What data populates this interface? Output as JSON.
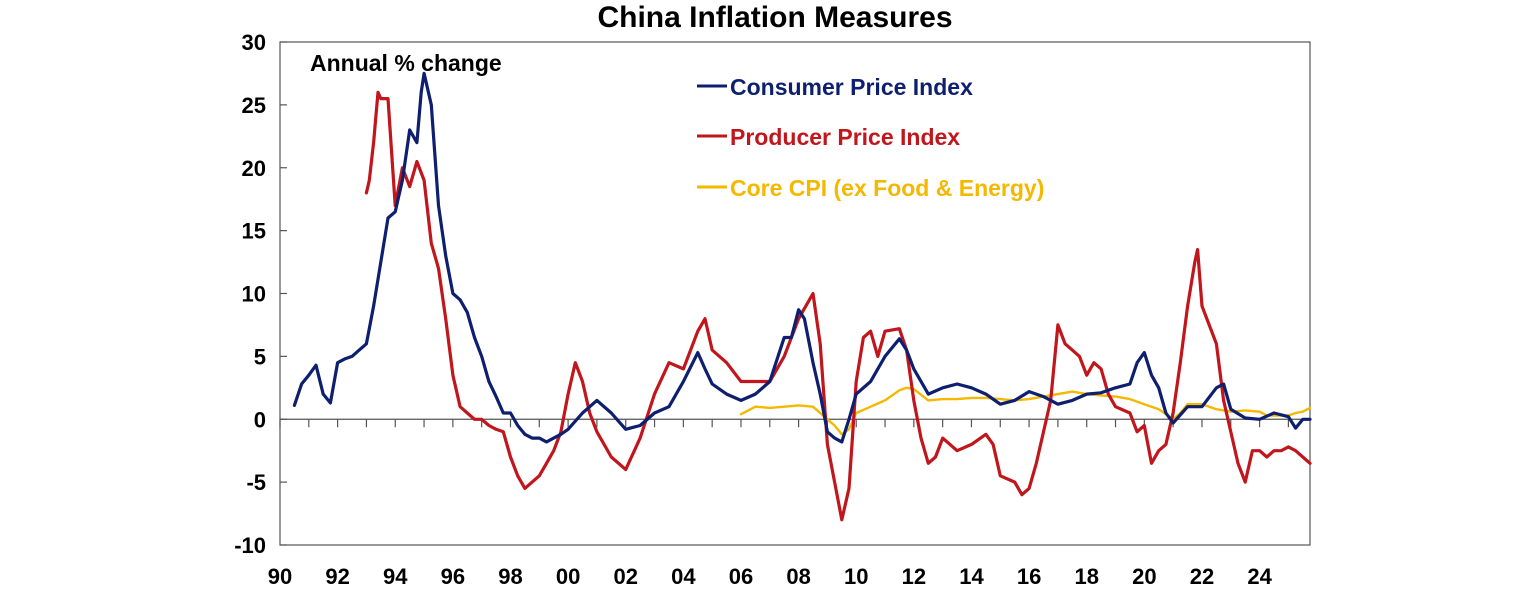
{
  "chart_data": {
    "type": "line",
    "title": "China Inflation Measures",
    "annotation": "Annual % change",
    "ylim": [
      -10,
      30
    ],
    "xlim": [
      1990,
      2025.75
    ],
    "yticks": [
      30,
      25,
      20,
      15,
      10,
      5,
      0,
      -5,
      -10
    ],
    "ytick_labels": [
      "30",
      "25",
      "20",
      "15",
      "10",
      "5",
      "0",
      "-5",
      "-10"
    ],
    "xticks": [
      1990,
      1992,
      1994,
      1996,
      1998,
      2000,
      2002,
      2004,
      2006,
      2008,
      2010,
      2012,
      2014,
      2016,
      2018,
      2020,
      2022,
      2024
    ],
    "xtick_labels": [
      "90",
      "92",
      "94",
      "96",
      "98",
      "00",
      "02",
      "04",
      "06",
      "08",
      "10",
      "12",
      "14",
      "16",
      "18",
      "20",
      "22",
      "24"
    ],
    "grid": false,
    "legend_position": "top-center",
    "series": [
      {
        "name": "Consumer Price Index",
        "color": "#0d1f6e",
        "x": [
          1990.5,
          1990.75,
          1991.0,
          1991.25,
          1991.5,
          1991.75,
          1992.0,
          1992.25,
          1992.5,
          1992.75,
          1993.0,
          1993.25,
          1993.5,
          1993.75,
          1994.0,
          1994.25,
          1994.5,
          1994.75,
          1994.9,
          1995.0,
          1995.25,
          1995.5,
          1995.75,
          1996.0,
          1996.25,
          1996.5,
          1996.75,
          1997.0,
          1997.25,
          1997.5,
          1997.75,
          1998.0,
          1998.25,
          1998.5,
          1998.75,
          1999.0,
          1999.25,
          1999.5,
          1999.75,
          2000.0,
          2000.5,
          2001.0,
          2001.5,
          2002.0,
          2002.5,
          2003.0,
          2003.5,
          2004.0,
          2004.5,
          2004.75,
          2005.0,
          2005.5,
          2006.0,
          2006.5,
          2007.0,
          2007.5,
          2007.75,
          2008.0,
          2008.2,
          2008.5,
          2008.75,
          2009.0,
          2009.25,
          2009.5,
          2009.75,
          2010.0,
          2010.5,
          2011.0,
          2011.5,
          2011.75,
          2012.0,
          2012.5,
          2013.0,
          2013.5,
          2014.0,
          2014.5,
          2015.0,
          2015.5,
          2016.0,
          2016.5,
          2017.0,
          2017.5,
          2018.0,
          2018.5,
          2019.0,
          2019.5,
          2019.75,
          2020.0,
          2020.25,
          2020.5,
          2020.75,
          2021.0,
          2021.5,
          2022.0,
          2022.5,
          2022.75,
          2023.0,
          2023.5,
          2024.0,
          2024.5,
          2025.0,
          2025.25,
          2025.5,
          2025.75
        ],
        "values": [
          1.1,
          2.8,
          3.5,
          4.3,
          2.0,
          1.3,
          4.5,
          4.8,
          5.0,
          5.5,
          6.0,
          9.0,
          12.5,
          16.0,
          16.5,
          19.0,
          23.0,
          22.0,
          26.0,
          27.5,
          25.0,
          17.0,
          13.0,
          10.0,
          9.5,
          8.5,
          6.5,
          5.0,
          3.0,
          1.8,
          0.5,
          0.5,
          -0.5,
          -1.2,
          -1.5,
          -1.5,
          -1.8,
          -1.5,
          -1.2,
          -0.8,
          0.5,
          1.5,
          0.5,
          -0.8,
          -0.5,
          0.5,
          1.0,
          3.0,
          5.3,
          4.0,
          2.8,
          2.0,
          1.5,
          2.0,
          3.0,
          6.5,
          6.5,
          8.7,
          8.0,
          4.5,
          2.0,
          -1.0,
          -1.5,
          -1.8,
          0.0,
          2.0,
          3.0,
          5.0,
          6.4,
          5.5,
          4.0,
          2.0,
          2.5,
          2.8,
          2.5,
          2.0,
          1.2,
          1.5,
          2.2,
          1.8,
          1.2,
          1.5,
          2.0,
          2.1,
          2.5,
          2.8,
          4.5,
          5.3,
          3.5,
          2.5,
          0.5,
          -0.3,
          1.0,
          1.0,
          2.5,
          2.8,
          0.8,
          0.1,
          0.0,
          0.5,
          0.2,
          -0.7,
          0.0,
          0.0
        ]
      },
      {
        "name": "Producer Price Index",
        "color": "#c0161c",
        "x": [
          1993.0,
          1993.1,
          1993.25,
          1993.4,
          1993.5,
          1993.75,
          1994.0,
          1994.25,
          1994.5,
          1994.75,
          1995.0,
          1995.25,
          1995.5,
          1995.75,
          1996.0,
          1996.25,
          1996.5,
          1996.75,
          1997.0,
          1997.25,
          1997.5,
          1997.75,
          1998.0,
          1998.25,
          1998.5,
          1998.75,
          1999.0,
          1999.25,
          1999.5,
          1999.75,
          2000.0,
          2000.25,
          2000.5,
          2000.75,
          2001.0,
          2001.5,
          2002.0,
          2002.5,
          2003.0,
          2003.5,
          2004.0,
          2004.5,
          2004.75,
          2005.0,
          2005.5,
          2006.0,
          2006.5,
          2007.0,
          2007.5,
          2008.0,
          2008.5,
          2008.75,
          2009.0,
          2009.25,
          2009.5,
          2009.75,
          2010.0,
          2010.25,
          2010.5,
          2010.75,
          2011.0,
          2011.5,
          2011.75,
          2012.0,
          2012.25,
          2012.5,
          2012.75,
          2013.0,
          2013.5,
          2014.0,
          2014.5,
          2014.75,
          2015.0,
          2015.5,
          2015.75,
          2016.0,
          2016.25,
          2016.5,
          2016.75,
          2017.0,
          2017.25,
          2017.5,
          2017.75,
          2018.0,
          2018.25,
          2018.5,
          2018.75,
          2019.0,
          2019.5,
          2019.75,
          2020.0,
          2020.25,
          2020.5,
          2020.75,
          2021.0,
          2021.25,
          2021.5,
          2021.75,
          2021.85,
          2022.0,
          2022.25,
          2022.5,
          2022.75,
          2023.0,
          2023.25,
          2023.5,
          2023.75,
          2024.0,
          2024.25,
          2024.5,
          2024.75,
          2025.0,
          2025.25,
          2025.5,
          2025.75
        ],
        "values": [
          18.0,
          19.0,
          22.0,
          26.0,
          25.5,
          25.5,
          17.0,
          20.0,
          18.5,
          20.5,
          19.0,
          14.0,
          12.0,
          8.0,
          3.5,
          1.0,
          0.5,
          0.0,
          0.0,
          -0.5,
          -0.8,
          -1.0,
          -3.0,
          -4.5,
          -5.5,
          -5.0,
          -4.5,
          -3.5,
          -2.5,
          -1.0,
          2.0,
          4.5,
          3.0,
          0.5,
          -1.0,
          -3.0,
          -4.0,
          -1.5,
          2.0,
          4.5,
          4.0,
          7.0,
          8.0,
          5.5,
          4.5,
          3.0,
          3.0,
          3.0,
          5.0,
          8.0,
          10.0,
          6.0,
          -2.0,
          -5.0,
          -8.0,
          -5.5,
          3.0,
          6.5,
          7.0,
          5.0,
          7.0,
          7.2,
          5.5,
          1.5,
          -1.5,
          -3.5,
          -3.0,
          -1.5,
          -2.5,
          -2.0,
          -1.2,
          -2.0,
          -4.5,
          -5.0,
          -6.0,
          -5.5,
          -3.5,
          -1.0,
          1.5,
          7.5,
          6.0,
          5.5,
          5.0,
          3.5,
          4.5,
          4.0,
          2.0,
          1.0,
          0.5,
          -1.0,
          -0.5,
          -3.5,
          -2.5,
          -2.0,
          0.5,
          4.5,
          9.0,
          12.5,
          13.5,
          9.0,
          7.5,
          6.0,
          1.5,
          -1.0,
          -3.5,
          -5.0,
          -2.5,
          -2.5,
          -3.0,
          -2.5,
          -2.5,
          -2.2,
          -2.5,
          -3.0,
          -3.5
        ]
      },
      {
        "name": "Core CPI (ex Food & Energy)",
        "color": "#f5b800",
        "x": [
          2006.0,
          2006.5,
          2007.0,
          2007.5,
          2008.0,
          2008.5,
          2009.0,
          2009.25,
          2009.5,
          2009.75,
          2010.0,
          2010.5,
          2011.0,
          2011.5,
          2011.75,
          2012.0,
          2012.5,
          2013.0,
          2013.5,
          2014.0,
          2014.5,
          2015.0,
          2015.5,
          2016.0,
          2016.5,
          2017.0,
          2017.5,
          2018.0,
          2018.5,
          2019.0,
          2019.5,
          2020.0,
          2020.5,
          2021.0,
          2021.25,
          2021.5,
          2022.0,
          2022.5,
          2023.0,
          2023.5,
          2024.0,
          2024.25,
          2024.5,
          2025.0,
          2025.25,
          2025.5,
          2025.75
        ],
        "values": [
          0.4,
          1.0,
          0.9,
          1.0,
          1.1,
          1.0,
          0.0,
          -0.5,
          -1.2,
          -0.8,
          0.5,
          1.0,
          1.5,
          2.3,
          2.5,
          2.4,
          1.5,
          1.6,
          1.6,
          1.7,
          1.7,
          1.6,
          1.5,
          1.6,
          1.8,
          2.0,
          2.2,
          2.0,
          1.9,
          1.8,
          1.6,
          1.2,
          0.8,
          0.0,
          0.5,
          1.2,
          1.2,
          0.8,
          0.6,
          0.7,
          0.6,
          0.3,
          0.3,
          0.3,
          0.5,
          0.6,
          0.9
        ]
      }
    ]
  }
}
